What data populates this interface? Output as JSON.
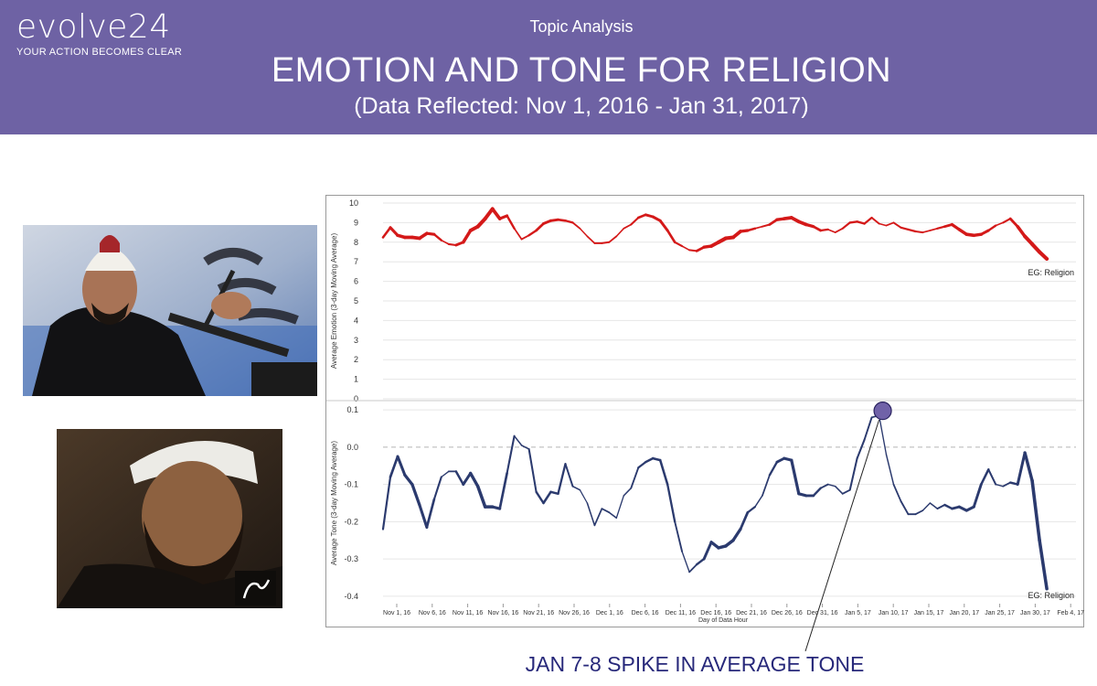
{
  "header": {
    "logo_text": "evolve24",
    "logo_tagline": "YOUR ACTION BECOMES CLEAR",
    "supertitle": "Topic Analysis",
    "title": "EMOTION AND TONE FOR RELIGION",
    "date_range": "(Data Reflected: Nov 1, 2016 - Jan 31, 2017)"
  },
  "photos": [
    {
      "icon": "speaker-at-podium-photo"
    },
    {
      "icon": "man-in-turban-portrait-photo"
    }
  ],
  "colors": {
    "banner": "#6e62a4",
    "emotion_line": "#d41919",
    "tone_line": "#2b3a6e",
    "spike_marker": "#7062a8",
    "callout_text": "#27287a"
  },
  "chart_data": {
    "type": "line",
    "x_axis": {
      "label": "Day of Data Hour",
      "ticks": [
        "Nov 1, 16",
        "Nov 6, 16",
        "Nov 11, 16",
        "Nov 16, 16",
        "Nov 21, 16",
        "Nov 26, 16",
        "Dec 1, 16",
        "Dec 6, 16",
        "Dec 11, 16",
        "Dec 16, 16",
        "Dec 21, 16",
        "Dec 26, 16",
        "Dec 31, 16",
        "Jan 5, 17",
        "Jan 10, 17",
        "Jan 15, 17",
        "Jan 20, 17",
        "Jan 25, 17",
        "Jan 30, 17",
        "Feb 4, 17"
      ],
      "range": [
        "2016-11-01",
        "2017-02-04"
      ]
    },
    "panels": [
      {
        "name": "emotion",
        "ylabel": "Average Emotion (3-day Moving Average)",
        "ylim": [
          0,
          10
        ],
        "yticks": [
          "0",
          "1",
          "2",
          "3",
          "4",
          "5",
          "6",
          "7",
          "8",
          "9",
          "10"
        ],
        "grid": true,
        "legend": "EG: Religion",
        "legend_position": "top-right",
        "series": [
          {
            "name": "EG: Religion",
            "color": "#d41919",
            "points": [
              [
                "2016-11-01",
                8.25
              ],
              [
                "2016-11-02",
                8.75
              ],
              [
                "2016-11-03",
                8.35
              ],
              [
                "2016-11-04",
                8.25
              ],
              [
                "2016-11-05",
                8.25
              ],
              [
                "2016-11-06",
                8.2
              ],
              [
                "2016-11-07",
                8.45
              ],
              [
                "2016-11-08",
                8.4
              ],
              [
                "2016-11-09",
                8.1
              ],
              [
                "2016-11-10",
                7.9
              ],
              [
                "2016-11-11",
                7.85
              ],
              [
                "2016-11-12",
                8.0
              ],
              [
                "2016-11-13",
                8.6
              ],
              [
                "2016-11-14",
                8.8
              ],
              [
                "2016-11-15",
                9.2
              ],
              [
                "2016-11-16",
                9.7
              ],
              [
                "2016-11-17",
                9.2
              ],
              [
                "2016-11-18",
                9.35
              ],
              [
                "2016-11-19",
                8.7
              ],
              [
                "2016-11-20",
                8.15
              ],
              [
                "2016-11-21",
                8.35
              ],
              [
                "2016-11-22",
                8.6
              ],
              [
                "2016-11-23",
                8.95
              ],
              [
                "2016-11-24",
                9.1
              ],
              [
                "2016-11-25",
                9.15
              ],
              [
                "2016-11-26",
                9.1
              ],
              [
                "2016-11-27",
                9.0
              ],
              [
                "2016-11-28",
                8.7
              ],
              [
                "2016-11-29",
                8.3
              ],
              [
                "2016-11-30",
                7.95
              ],
              [
                "2016-12-01",
                7.95
              ],
              [
                "2016-12-02",
                8.0
              ],
              [
                "2016-12-03",
                8.3
              ],
              [
                "2016-12-04",
                8.7
              ],
              [
                "2016-12-05",
                8.9
              ],
              [
                "2016-12-06",
                9.25
              ],
              [
                "2016-12-07",
                9.4
              ],
              [
                "2016-12-08",
                9.3
              ],
              [
                "2016-12-09",
                9.1
              ],
              [
                "2016-12-10",
                8.6
              ],
              [
                "2016-12-11",
                8.0
              ],
              [
                "2016-12-12",
                7.8
              ],
              [
                "2016-12-13",
                7.6
              ],
              [
                "2016-12-14",
                7.55
              ],
              [
                "2016-12-15",
                7.75
              ],
              [
                "2016-12-16",
                7.8
              ],
              [
                "2016-12-17",
                8.0
              ],
              [
                "2016-12-18",
                8.2
              ],
              [
                "2016-12-19",
                8.25
              ],
              [
                "2016-12-20",
                8.55
              ],
              [
                "2016-12-21",
                8.6
              ],
              [
                "2016-12-22",
                8.7
              ],
              [
                "2016-12-23",
                8.8
              ],
              [
                "2016-12-24",
                8.9
              ],
              [
                "2016-12-25",
                9.15
              ],
              [
                "2016-12-26",
                9.2
              ],
              [
                "2016-12-27",
                9.25
              ],
              [
                "2016-12-28",
                9.05
              ],
              [
                "2016-12-29",
                8.9
              ],
              [
                "2016-12-30",
                8.8
              ],
              [
                "2016-12-31",
                8.6
              ],
              [
                "2017-01-01",
                8.65
              ],
              [
                "2017-01-02",
                8.5
              ],
              [
                "2017-01-03",
                8.7
              ],
              [
                "2017-01-04",
                9.0
              ],
              [
                "2017-01-05",
                9.05
              ],
              [
                "2017-01-06",
                8.95
              ],
              [
                "2017-01-07",
                9.25
              ],
              [
                "2017-01-08",
                8.95
              ],
              [
                "2017-01-09",
                8.85
              ],
              [
                "2017-01-10",
                9.0
              ],
              [
                "2017-01-11",
                8.75
              ],
              [
                "2017-01-12",
                8.65
              ],
              [
                "2017-01-13",
                8.55
              ],
              [
                "2017-01-14",
                8.5
              ],
              [
                "2017-01-15",
                8.6
              ],
              [
                "2017-01-16",
                8.7
              ],
              [
                "2017-01-17",
                8.8
              ],
              [
                "2017-01-18",
                8.9
              ],
              [
                "2017-01-19",
                8.65
              ],
              [
                "2017-01-20",
                8.4
              ],
              [
                "2017-01-21",
                8.35
              ],
              [
                "2017-01-22",
                8.4
              ],
              [
                "2017-01-23",
                8.6
              ],
              [
                "2017-01-24",
                8.85
              ],
              [
                "2017-01-25",
                9.0
              ],
              [
                "2017-01-26",
                9.2
              ],
              [
                "2017-01-27",
                8.8
              ],
              [
                "2017-01-28",
                8.3
              ],
              [
                "2017-01-29",
                7.9
              ],
              [
                "2017-01-30",
                7.5
              ],
              [
                "2017-01-31",
                7.15
              ]
            ]
          }
        ]
      },
      {
        "name": "tone",
        "ylabel": "Average Tone (3-day Moving Average)",
        "ylim": [
          -0.42,
          0.12
        ],
        "yticks": [
          "0.1",
          "0.0",
          "-0.1",
          "-0.2",
          "-0.3",
          "-0.4"
        ],
        "grid": true,
        "zero_line": "dashed",
        "legend": "EG: Religion",
        "legend_position": "bottom-right",
        "series": [
          {
            "name": "EG: Religion",
            "color": "#2b3a6e",
            "points": [
              [
                "2016-11-01",
                -0.22
              ],
              [
                "2016-11-02",
                -0.08
              ],
              [
                "2016-11-03",
                -0.025
              ],
              [
                "2016-11-04",
                -0.075
              ],
              [
                "2016-11-05",
                -0.1
              ],
              [
                "2016-11-06",
                -0.155
              ],
              [
                "2016-11-07",
                -0.215
              ],
              [
                "2016-11-08",
                -0.14
              ],
              [
                "2016-11-09",
                -0.08
              ],
              [
                "2016-11-10",
                -0.065
              ],
              [
                "2016-11-11",
                -0.065
              ],
              [
                "2016-11-12",
                -0.1
              ],
              [
                "2016-11-13",
                -0.07
              ],
              [
                "2016-11-14",
                -0.105
              ],
              [
                "2016-11-15",
                -0.16
              ],
              [
                "2016-11-16",
                -0.16
              ],
              [
                "2016-11-17",
                -0.165
              ],
              [
                "2016-11-18",
                -0.07
              ],
              [
                "2016-11-19",
                0.03
              ],
              [
                "2016-11-20",
                0.005
              ],
              [
                "2016-11-21",
                -0.005
              ],
              [
                "2016-11-22",
                -0.12
              ],
              [
                "2016-11-23",
                -0.15
              ],
              [
                "2016-11-24",
                -0.12
              ],
              [
                "2016-11-25",
                -0.125
              ],
              [
                "2016-11-26",
                -0.045
              ],
              [
                "2016-11-27",
                -0.105
              ],
              [
                "2016-11-28",
                -0.115
              ],
              [
                "2016-11-29",
                -0.15
              ],
              [
                "2016-11-30",
                -0.21
              ],
              [
                "2016-12-01",
                -0.165
              ],
              [
                "2016-12-02",
                -0.175
              ],
              [
                "2016-12-03",
                -0.19
              ],
              [
                "2016-12-04",
                -0.13
              ],
              [
                "2016-12-05",
                -0.11
              ],
              [
                "2016-12-06",
                -0.055
              ],
              [
                "2016-12-07",
                -0.04
              ],
              [
                "2016-12-08",
                -0.03
              ],
              [
                "2016-12-09",
                -0.035
              ],
              [
                "2016-12-10",
                -0.1
              ],
              [
                "2016-12-11",
                -0.2
              ],
              [
                "2016-12-12",
                -0.28
              ],
              [
                "2016-12-13",
                -0.335
              ],
              [
                "2016-12-14",
                -0.315
              ],
              [
                "2016-12-15",
                -0.3
              ],
              [
                "2016-12-16",
                -0.255
              ],
              [
                "2016-12-17",
                -0.27
              ],
              [
                "2016-12-18",
                -0.265
              ],
              [
                "2016-12-19",
                -0.25
              ],
              [
                "2016-12-20",
                -0.22
              ],
              [
                "2016-12-21",
                -0.175
              ],
              [
                "2016-12-22",
                -0.16
              ],
              [
                "2016-12-23",
                -0.13
              ],
              [
                "2016-12-24",
                -0.075
              ],
              [
                "2016-12-25",
                -0.04
              ],
              [
                "2016-12-26",
                -0.03
              ],
              [
                "2016-12-27",
                -0.035
              ],
              [
                "2016-12-28",
                -0.125
              ],
              [
                "2016-12-29",
                -0.13
              ],
              [
                "2016-12-30",
                -0.13
              ],
              [
                "2016-12-31",
                -0.11
              ],
              [
                "2017-01-01",
                -0.1
              ],
              [
                "2017-01-02",
                -0.105
              ],
              [
                "2017-01-03",
                -0.125
              ],
              [
                "2017-01-04",
                -0.115
              ],
              [
                "2017-01-05",
                -0.03
              ],
              [
                "2017-01-06",
                0.02
              ],
              [
                "2017-01-07",
                0.08
              ],
              [
                "2017-01-08",
                0.085
              ],
              [
                "2017-01-09",
                -0.02
              ],
              [
                "2017-01-10",
                -0.1
              ],
              [
                "2017-01-11",
                -0.145
              ],
              [
                "2017-01-12",
                -0.18
              ],
              [
                "2017-01-13",
                -0.18
              ],
              [
                "2017-01-14",
                -0.17
              ],
              [
                "2017-01-15",
                -0.15
              ],
              [
                "2017-01-16",
                -0.165
              ],
              [
                "2017-01-17",
                -0.155
              ],
              [
                "2017-01-18",
                -0.165
              ],
              [
                "2017-01-19",
                -0.16
              ],
              [
                "2017-01-20",
                -0.17
              ],
              [
                "2017-01-21",
                -0.16
              ],
              [
                "2017-01-22",
                -0.1
              ],
              [
                "2017-01-23",
                -0.06
              ],
              [
                "2017-01-24",
                -0.1
              ],
              [
                "2017-01-25",
                -0.105
              ],
              [
                "2017-01-26",
                -0.095
              ],
              [
                "2017-01-27",
                -0.1
              ],
              [
                "2017-01-28",
                -0.015
              ],
              [
                "2017-01-29",
                -0.09
              ],
              [
                "2017-01-30",
                -0.25
              ],
              [
                "2017-01-31",
                -0.38
              ]
            ]
          }
        ]
      }
    ],
    "annotations": [
      {
        "text": "JAN 7-8 SPIKE IN AVERAGE TONE",
        "x": "2017-01-08",
        "y": 0.1,
        "panel": "tone",
        "marker": "circle"
      }
    ]
  }
}
